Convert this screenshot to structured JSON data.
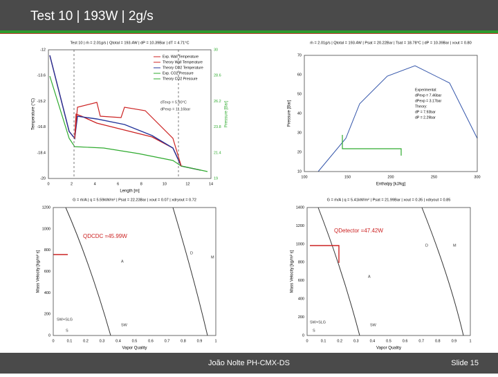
{
  "header": {
    "title": "Test 10 |  193W | 2g/s"
  },
  "footer": {
    "author": "João Nolte PH-CMX-DS",
    "slide": "Slide 15"
  },
  "panels": [
    {
      "title": "Test 10 | ṁ = 2.01g/s | Qtotal = 193.4W | dP = 10.39Bar | dT = 4.71°C",
      "ylabel": "Temperature (°C)",
      "y2label": "Pressure [Bar]",
      "xlabel": "Length [m]",
      "yticks": [
        "-12",
        "-13.6",
        "-15.2",
        "-16.8",
        "-18.4",
        "-20"
      ],
      "y2ticks": [
        "30",
        "28.6",
        "26.2",
        "23.8",
        "21.4",
        "19"
      ],
      "xticks": [
        "0",
        "2",
        "4",
        "6",
        "8",
        "10",
        "12",
        "14"
      ],
      "legend": [
        "Exp. Wall Temperature",
        "Theory Wall Temperature",
        "Theory CO2 Temperature",
        "Exp. CO2 Pressure",
        "Theory CO2 Pressure"
      ],
      "annotations": [
        "dTexp = 5.90°C",
        "dPexp = 11.16bar"
      ]
    },
    {
      "title": "ṁ = 2.01g/s | Qtotal = 193.4W | Psat = 20.22Bar | Tsat = 18.78°C | dP = 10.39Bar | xout = 0.80",
      "ylabel": "Pressure [Bar]",
      "xlabel": "Enthalpy [kJ/kg]",
      "yticks": [
        "70",
        "60",
        "50",
        "40",
        "30",
        "20",
        "10"
      ],
      "xticks": [
        "100",
        "150",
        "200",
        "250",
        "300"
      ],
      "legend": [
        "Experimental:",
        "dPexp = 7.46bar",
        "dPexp = 3.17bar",
        "Theory:",
        "dP = 7.93bar",
        "dP = 2.29bar"
      ],
      "annotations": []
    },
    {
      "title": "G = ṁ/A | q = 5.59kW/m² | Psat = 22.23Bar | xout = 0.07 | xdryout = 0.72",
      "ylabel": "Mass Velocity [kg/m² s]",
      "xlabel": "Vapor Quality",
      "yticks": [
        "1200",
        "1000",
        "800",
        "600",
        "400",
        "200",
        "0"
      ],
      "xticks": [
        "0",
        "0.1",
        "0.2",
        "0.3",
        "0.4",
        "0.5",
        "0.6",
        "0.7",
        "0.8",
        "0.9",
        "1"
      ],
      "legend": [],
      "annotations": [
        "QDCDC =45.99W",
        "A",
        "D",
        "M",
        "SW",
        "SW+SLG",
        "S"
      ]
    },
    {
      "title": "G = ṁ/A | q = 5.41kW/m² | Psat = 21.99Bar | xout = 0.35 | xdryout = 0.85",
      "ylabel": "Mass Velocity [kg/m² s]",
      "xlabel": "Vapor Quality",
      "yticks": [
        "1400",
        "1200",
        "1000",
        "800",
        "600",
        "400",
        "200",
        "0"
      ],
      "xticks": [
        "0",
        "0.1",
        "0.2",
        "0.3",
        "0.4",
        "0.5",
        "0.6",
        "0.7",
        "0.8",
        "0.9",
        "1"
      ],
      "legend": [],
      "annotations": [
        "QDetector =47.42W",
        "A",
        "D",
        "M",
        "SW",
        "SW+SLG",
        "S"
      ]
    }
  ]
}
